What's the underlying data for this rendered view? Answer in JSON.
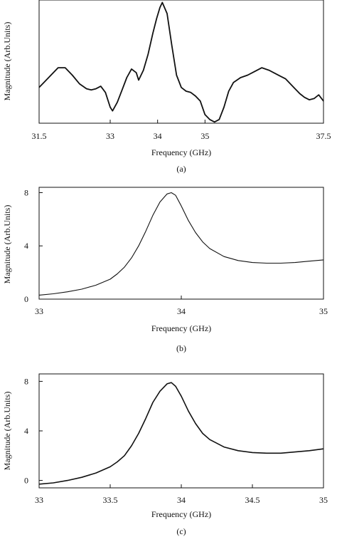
{
  "chart_data": [
    {
      "type": "line",
      "panel": "a",
      "caption": "(a)",
      "xlabel": "Frequency (GHz)",
      "ylabel": "Magnitude (Arb.Units)",
      "xlim": [
        31.5,
        37.5
      ],
      "xticks": [
        "31.5",
        "33",
        "34",
        "35",
        "37.5"
      ],
      "xtick_values": [
        31.5,
        33,
        34,
        35,
        37.5
      ],
      "yticks": [],
      "ylim": [
        0,
        10
      ],
      "grid": false,
      "series": [
        {
          "x": [
            31.5,
            31.6,
            31.75,
            31.9,
            32.05,
            32.2,
            32.35,
            32.5,
            32.6,
            32.7,
            32.8,
            32.9,
            33.0,
            33.05,
            33.15,
            33.25,
            33.35,
            33.45,
            33.55,
            33.6,
            33.7,
            33.8,
            33.9,
            33.98,
            34.05,
            34.1,
            34.2,
            34.3,
            34.4,
            34.5,
            34.6,
            34.7,
            34.8,
            34.9,
            35.0,
            35.1,
            35.2,
            35.3,
            35.4,
            35.5,
            35.6,
            35.75,
            35.9,
            36.05,
            36.2,
            36.35,
            36.5,
            36.6,
            36.7,
            36.8,
            36.9,
            37.0,
            37.1,
            37.2,
            37.3,
            37.4,
            37.5
          ],
          "y": [
            2.9,
            3.3,
            3.9,
            4.5,
            4.5,
            3.9,
            3.2,
            2.8,
            2.7,
            2.8,
            3.0,
            2.5,
            1.3,
            1.0,
            1.7,
            2.7,
            3.7,
            4.4,
            4.1,
            3.5,
            4.3,
            5.6,
            7.3,
            8.5,
            9.4,
            9.8,
            8.9,
            6.3,
            3.9,
            2.9,
            2.6,
            2.5,
            2.2,
            1.8,
            0.7,
            0.3,
            0.1,
            0.3,
            1.3,
            2.6,
            3.3,
            3.7,
            3.9,
            4.2,
            4.5,
            4.3,
            4.0,
            3.8,
            3.6,
            3.2,
            2.8,
            2.4,
            2.1,
            1.9,
            2.0,
            2.3,
            1.8
          ]
        }
      ]
    },
    {
      "type": "line",
      "panel": "b",
      "caption": "(b)",
      "xlabel": "Frequency (GHz)",
      "ylabel": "Magnitude (Arb.Units)",
      "xlim": [
        33,
        35
      ],
      "ylim": [
        0,
        8.4
      ],
      "xticks": [
        "33",
        "34",
        "35"
      ],
      "xtick_values": [
        33,
        34,
        35
      ],
      "yticks": [
        "0",
        "4",
        "8"
      ],
      "ytick_values": [
        0,
        4,
        8
      ],
      "grid": false,
      "series": [
        {
          "x": [
            33.0,
            33.1,
            33.2,
            33.3,
            33.4,
            33.5,
            33.55,
            33.6,
            33.65,
            33.7,
            33.75,
            33.8,
            33.85,
            33.9,
            33.93,
            33.96,
            34.0,
            34.05,
            34.1,
            34.15,
            34.2,
            34.3,
            34.4,
            34.5,
            34.6,
            34.7,
            34.8,
            34.9,
            35.0
          ],
          "y": [
            0.3,
            0.4,
            0.55,
            0.75,
            1.05,
            1.5,
            1.9,
            2.4,
            3.1,
            4.0,
            5.1,
            6.3,
            7.3,
            7.9,
            8.0,
            7.8,
            7.0,
            5.9,
            5.0,
            4.3,
            3.8,
            3.2,
            2.9,
            2.75,
            2.7,
            2.7,
            2.75,
            2.85,
            2.95
          ]
        }
      ]
    },
    {
      "type": "line",
      "panel": "c",
      "caption": "(c)",
      "xlabel": "Frequency (GHz)",
      "ylabel": "Magnitude (Arb.Units)",
      "xlim": [
        33,
        35
      ],
      "ylim": [
        -0.6,
        8.6
      ],
      "xticks": [
        "33",
        "33.5",
        "34",
        "34.5",
        "35"
      ],
      "xtick_values": [
        33,
        33.5,
        34,
        34.5,
        35
      ],
      "yticks": [
        "0",
        "4",
        "8"
      ],
      "ytick_values": [
        0,
        4,
        8
      ],
      "grid": false,
      "series": [
        {
          "x": [
            33.0,
            33.1,
            33.2,
            33.3,
            33.4,
            33.5,
            33.55,
            33.6,
            33.65,
            33.7,
            33.75,
            33.8,
            33.85,
            33.9,
            33.93,
            33.96,
            34.0,
            34.05,
            34.1,
            34.15,
            34.2,
            34.3,
            34.4,
            34.5,
            34.6,
            34.7,
            34.8,
            34.9,
            35.0
          ],
          "y": [
            -0.3,
            -0.2,
            0.0,
            0.25,
            0.6,
            1.1,
            1.5,
            2.0,
            2.8,
            3.8,
            5.0,
            6.3,
            7.2,
            7.8,
            7.9,
            7.6,
            6.8,
            5.6,
            4.6,
            3.8,
            3.3,
            2.7,
            2.4,
            2.25,
            2.2,
            2.2,
            2.3,
            2.4,
            2.55
          ]
        }
      ]
    }
  ]
}
